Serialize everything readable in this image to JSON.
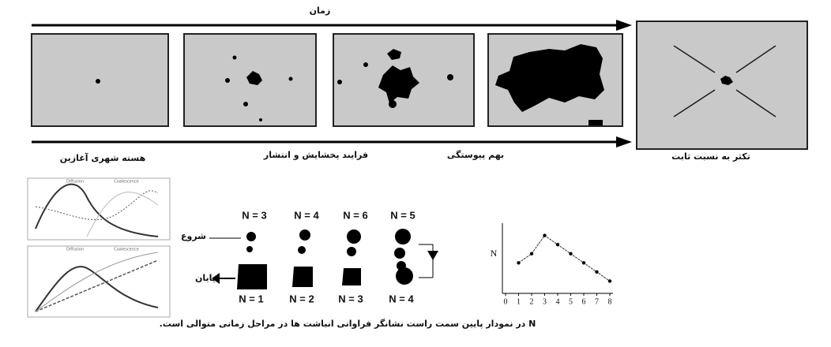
{
  "time_label": "زمان",
  "stages": [
    "هسته شهری آغازین",
    "فرایند پخشایش و انتشار",
    "بهم پیوستگی",
    "تکثر به نسبت ثابت"
  ],
  "left_charts": [
    {
      "left_title": "Diffusion",
      "right_title": "Coalescence"
    },
    {
      "left_title": "Diffusion",
      "right_title": "Coalescence"
    }
  ],
  "cluster_diagram": {
    "top_counts": [
      "N = 3",
      "N = 4",
      "N = 6",
      "N = 5"
    ],
    "bottom_counts": [
      "N = 1",
      "N = 2",
      "N = 3",
      "N = 4"
    ],
    "start": "شروع",
    "end": "پایان"
  },
  "n_chart": {
    "type": "line",
    "y_label": "N",
    "x": [
      1,
      2,
      3,
      4,
      5,
      6,
      7,
      8
    ],
    "values": [
      3,
      4,
      6,
      5,
      4,
      3,
      2,
      1
    ],
    "xlim": [
      0,
      8
    ],
    "ylim": [
      0,
      7
    ],
    "xticks": [
      0,
      1,
      2,
      3,
      4,
      5,
      6,
      7,
      8
    ]
  },
  "caption": "N در نمودار پایین سمت راست نشانگر فراوانی انباشت ها در مراحل زمانی متوالی است."
}
